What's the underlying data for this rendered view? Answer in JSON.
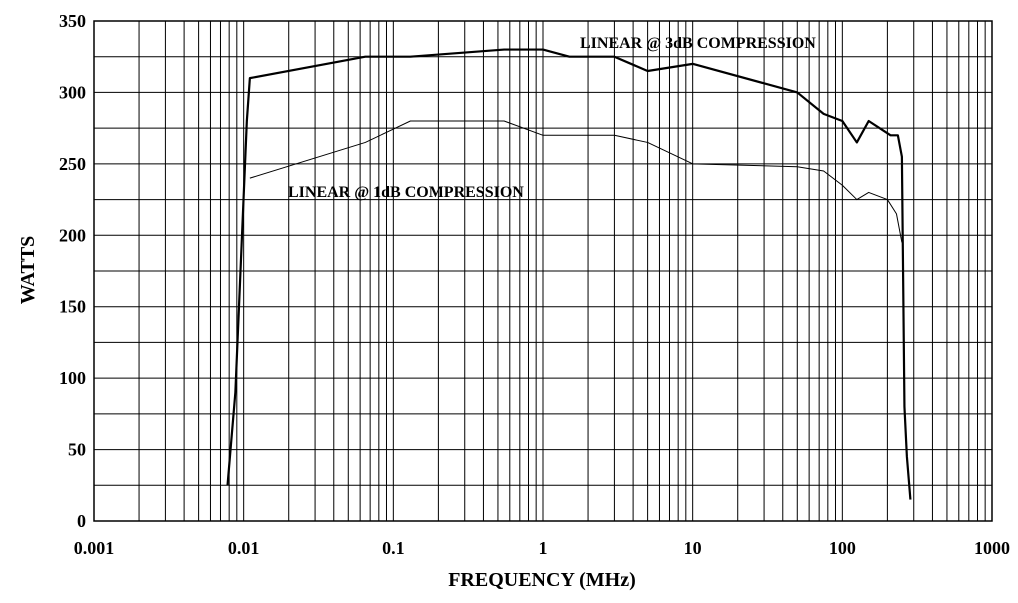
{
  "chart_data": {
    "type": "line",
    "title": "",
    "xlabel": "FREQUENCY (MHz)",
    "ylabel": "WATTS",
    "xscale": "log",
    "xlim": [
      0.001,
      1000
    ],
    "ylim": [
      0,
      350
    ],
    "grid": true,
    "legend": "none",
    "x_ticks": [
      {
        "value": 0.001,
        "label": "0.001"
      },
      {
        "value": 0.01,
        "label": "0.01"
      },
      {
        "value": 0.1,
        "label": "0.1"
      },
      {
        "value": 1,
        "label": "1"
      },
      {
        "value": 10,
        "label": "10"
      },
      {
        "value": 100,
        "label": "100"
      },
      {
        "value": 1000,
        "label": "1000"
      }
    ],
    "y_ticks": [
      {
        "value": 0,
        "label": "0"
      },
      {
        "value": 50,
        "label": "50"
      },
      {
        "value": 100,
        "label": "100"
      },
      {
        "value": 150,
        "label": "150"
      },
      {
        "value": 200,
        "label": "200"
      },
      {
        "value": 250,
        "label": "250"
      },
      {
        "value": 300,
        "label": "300"
      },
      {
        "value": 350,
        "label": "350"
      }
    ],
    "series": [
      {
        "name": "LINEAR @ 3dB COMPRESSION",
        "style": "thick",
        "points": [
          {
            "x": 0.0078,
            "y": 25
          },
          {
            "x": 0.0088,
            "y": 90
          },
          {
            "x": 0.0105,
            "y": 280
          },
          {
            "x": 0.011,
            "y": 310
          },
          {
            "x": 0.065,
            "y": 325
          },
          {
            "x": 0.13,
            "y": 325
          },
          {
            "x": 0.55,
            "y": 330
          },
          {
            "x": 1.0,
            "y": 330
          },
          {
            "x": 1.5,
            "y": 325
          },
          {
            "x": 3.0,
            "y": 325
          },
          {
            "x": 5.0,
            "y": 315
          },
          {
            "x": 10.0,
            "y": 320
          },
          {
            "x": 50.0,
            "y": 300
          },
          {
            "x": 75.0,
            "y": 285
          },
          {
            "x": 100.0,
            "y": 280
          },
          {
            "x": 125.0,
            "y": 265
          },
          {
            "x": 150.0,
            "y": 280
          },
          {
            "x": 210.0,
            "y": 270
          },
          {
            "x": 235.0,
            "y": 270
          },
          {
            "x": 250.0,
            "y": 255
          },
          {
            "x": 260.0,
            "y": 80
          },
          {
            "x": 270.0,
            "y": 45
          },
          {
            "x": 285.0,
            "y": 15
          }
        ]
      },
      {
        "name": "LINEAR @ 1dB COMPRESSION",
        "style": "thin",
        "points": [
          {
            "x": 0.011,
            "y": 240
          },
          {
            "x": 0.065,
            "y": 265
          },
          {
            "x": 0.13,
            "y": 280
          },
          {
            "x": 0.55,
            "y": 280
          },
          {
            "x": 1.0,
            "y": 270
          },
          {
            "x": 3.0,
            "y": 270
          },
          {
            "x": 5.0,
            "y": 265
          },
          {
            "x": 10.0,
            "y": 250
          },
          {
            "x": 50.0,
            "y": 248
          },
          {
            "x": 75.0,
            "y": 245
          },
          {
            "x": 100.0,
            "y": 235
          },
          {
            "x": 125.0,
            "y": 225
          },
          {
            "x": 150.0,
            "y": 230
          },
          {
            "x": 200.0,
            "y": 225
          },
          {
            "x": 230.0,
            "y": 215
          },
          {
            "x": 250.0,
            "y": 195
          }
        ]
      }
    ],
    "annotations": [
      {
        "text": "LINEAR @ 3dB COMPRESSION",
        "series": 0
      },
      {
        "text": "LINEAR @ 1dB COMPRESSION",
        "series": 1
      }
    ]
  }
}
